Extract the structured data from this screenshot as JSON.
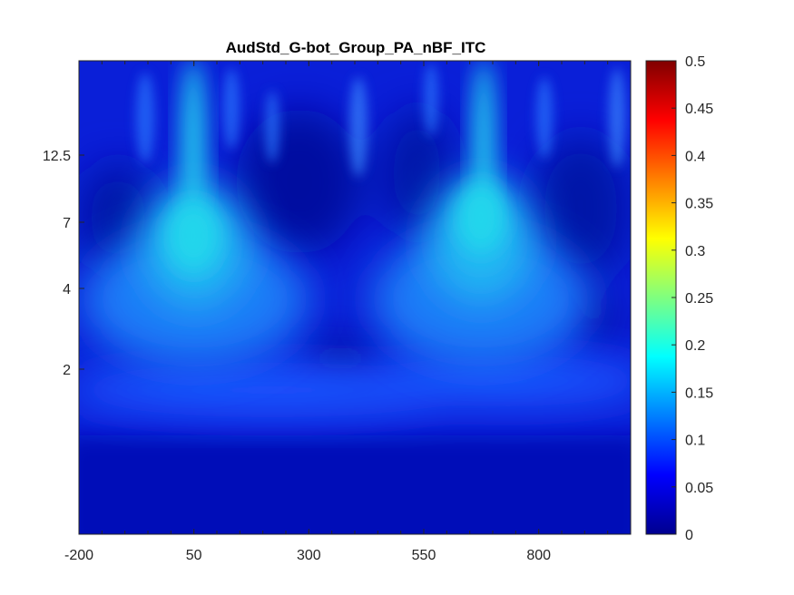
{
  "chart_data": {
    "type": "heatmap",
    "title": "AudStd_G-bot_Group_PA_nBF_ITC",
    "xlabel": "",
    "ylabel": "",
    "x_ticks": [
      -200,
      50,
      300,
      550,
      800
    ],
    "xlim": [
      -200,
      1000
    ],
    "y_ticks": [
      "2",
      "4",
      "7",
      "12.5"
    ],
    "colormap": "jet",
    "clim": [
      0,
      0.5
    ],
    "colorbar_ticks": [
      "0",
      "0.05",
      "0.1",
      "0.15",
      "0.2",
      "0.25",
      "0.3",
      "0.35",
      "0.4",
      "0.45",
      "0.5"
    ],
    "colorbar_values": [
      0,
      0.05,
      0.1,
      0.15,
      0.2,
      0.25,
      0.3,
      0.35,
      0.4,
      0.45,
      0.5
    ],
    "peaks": [
      {
        "x": 50,
        "y": "7",
        "value": 0.17
      },
      {
        "x": 680,
        "y": "7",
        "value": 0.17
      }
    ],
    "background_value_low_freq": 0.04,
    "background_value_mid_freq": 0.09,
    "grid": false
  }
}
